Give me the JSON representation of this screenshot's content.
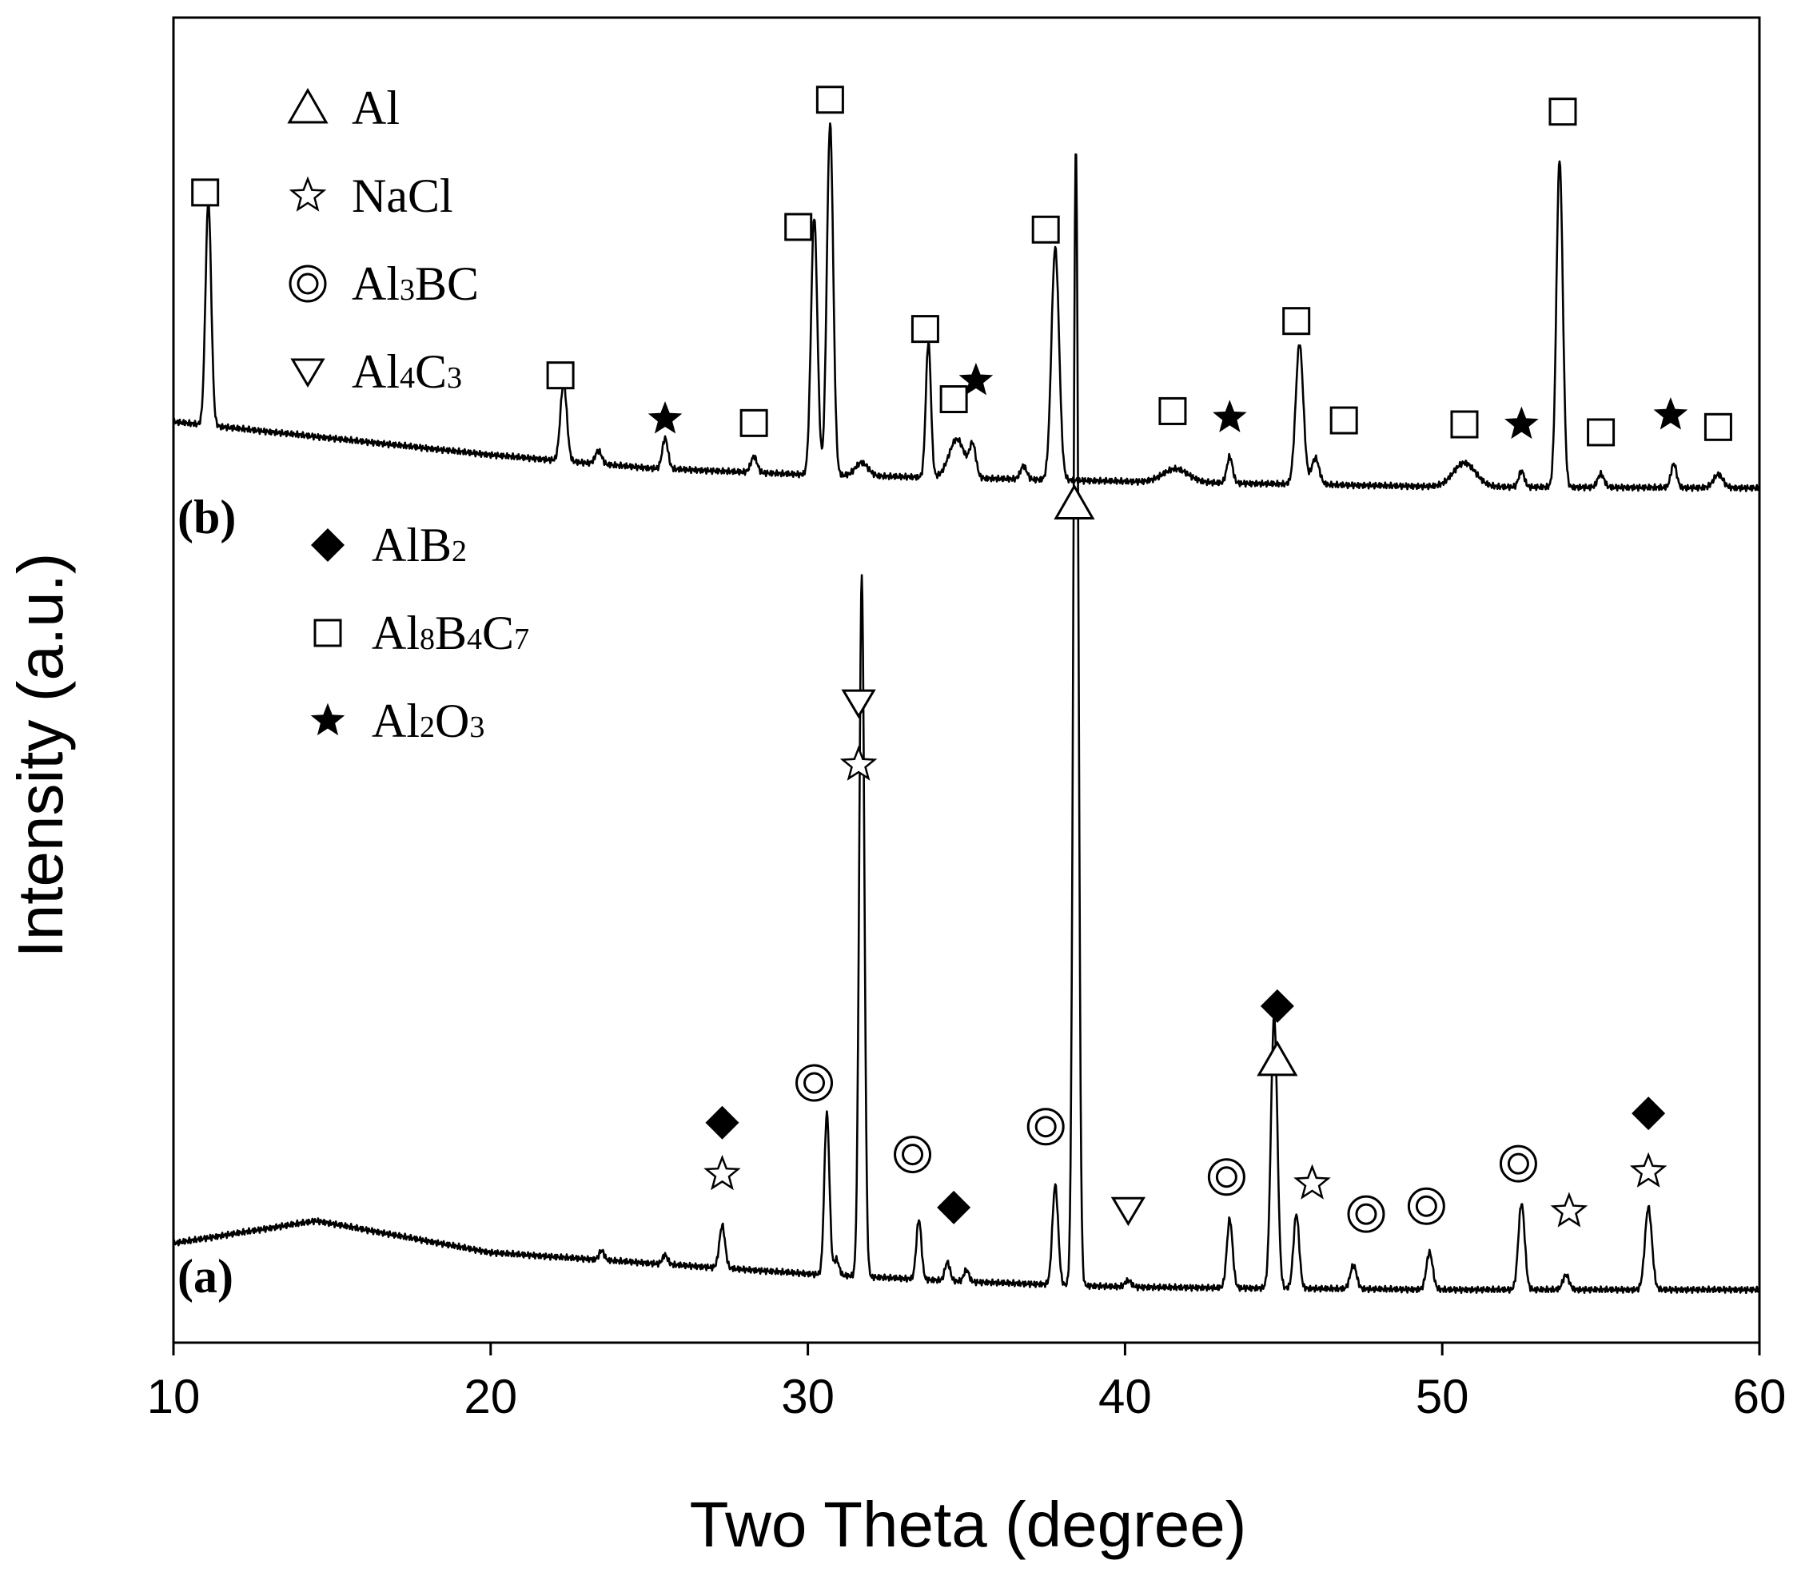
{
  "chart_data": {
    "type": "line",
    "xlabel": "Two Theta (degree)",
    "ylabel": "Intensity (a.u.)",
    "xlim": [
      10,
      60
    ],
    "ylim": [
      0,
      100
    ],
    "x_ticks": [
      "10",
      "20",
      "30",
      "40",
      "50",
      "60"
    ],
    "legend": [
      {
        "symbol": "triangle-up",
        "label": "Al"
      },
      {
        "symbol": "star-open",
        "label": "NaCl"
      },
      {
        "symbol": "double-circle",
        "label": "Al3BC"
      },
      {
        "symbol": "triangle-down",
        "label": "Al4C3"
      },
      {
        "symbol": "diamond",
        "label": "AlB2"
      },
      {
        "symbol": "square",
        "label": "Al8B4C7"
      },
      {
        "symbol": "star-filled",
        "label": "Al2O3"
      }
    ],
    "legend_display": [
      {
        "base": "Al",
        "parts": [
          {
            "t": "Al",
            "sub": false
          }
        ]
      },
      {
        "base": "NaCl",
        "parts": [
          {
            "t": "NaCl",
            "sub": false
          }
        ]
      },
      {
        "base": "Al3BC",
        "parts": [
          {
            "t": "Al",
            "sub": false
          },
          {
            "t": "3",
            "sub": true
          },
          {
            "t": "BC",
            "sub": false
          }
        ]
      },
      {
        "base": "Al4C3",
        "parts": [
          {
            "t": "Al",
            "sub": false
          },
          {
            "t": "4",
            "sub": true
          },
          {
            "t": "C",
            "sub": false
          },
          {
            "t": "3",
            "sub": true
          }
        ]
      },
      {
        "base": "AlB2",
        "parts": [
          {
            "t": "AlB",
            "sub": false
          },
          {
            "t": "2",
            "sub": true
          }
        ]
      },
      {
        "base": "Al8B4C7",
        "parts": [
          {
            "t": "Al",
            "sub": false
          },
          {
            "t": "8",
            "sub": true
          },
          {
            "t": "B",
            "sub": false
          },
          {
            "t": "4",
            "sub": true
          },
          {
            "t": "C",
            "sub": false
          },
          {
            "t": "7",
            "sub": true
          }
        ]
      },
      {
        "base": "Al2O3",
        "parts": [
          {
            "t": "Al",
            "sub": false
          },
          {
            "t": "2",
            "sub": true
          },
          {
            "t": "O",
            "sub": false
          },
          {
            "t": "3",
            "sub": true
          }
        ]
      }
    ],
    "series": [
      {
        "name": "(a)",
        "label": "(a)",
        "baseline": [
          [
            10,
            7.5
          ],
          [
            14.5,
            9.2
          ],
          [
            20,
            6.8
          ],
          [
            30,
            5.2
          ],
          [
            35,
            4.6
          ],
          [
            40,
            4.2
          ],
          [
            50,
            4.0
          ],
          [
            60,
            4.0
          ]
        ],
        "peaks": [
          {
            "x": 23.5,
            "h": 0.7,
            "w": 0.08
          },
          {
            "x": 25.5,
            "h": 0.7,
            "w": 0.08
          },
          {
            "x": 27.3,
            "h": 3.2,
            "w": 0.09
          },
          {
            "x": 30.6,
            "h": 12.2,
            "w": 0.08
          },
          {
            "x": 30.9,
            "h": 1.2,
            "w": 0.08
          },
          {
            "x": 31.7,
            "h": 53.0,
            "w": 0.08
          },
          {
            "x": 33.5,
            "h": 4.5,
            "w": 0.08
          },
          {
            "x": 34.4,
            "h": 1.4,
            "w": 0.08
          },
          {
            "x": 35.0,
            "h": 0.9,
            "w": 0.08
          },
          {
            "x": 37.8,
            "h": 7.5,
            "w": 0.09
          },
          {
            "x": 38.45,
            "h": 86.0,
            "w": 0.08
          },
          {
            "x": 40.1,
            "h": 0.5,
            "w": 0.1
          },
          {
            "x": 43.3,
            "h": 5.2,
            "w": 0.09
          },
          {
            "x": 44.7,
            "h": 20.5,
            "w": 0.1
          },
          {
            "x": 45.4,
            "h": 5.6,
            "w": 0.09
          },
          {
            "x": 47.2,
            "h": 1.8,
            "w": 0.1
          },
          {
            "x": 49.6,
            "h": 2.8,
            "w": 0.1
          },
          {
            "x": 52.5,
            "h": 6.5,
            "w": 0.1
          },
          {
            "x": 53.9,
            "h": 1.1,
            "w": 0.1
          },
          {
            "x": 56.5,
            "h": 6.2,
            "w": 0.11
          }
        ],
        "markers": [
          {
            "x": 27.3,
            "y": 12.7,
            "symbol": "star-open"
          },
          {
            "x": 27.3,
            "y": 16.6,
            "symbol": "diamond"
          },
          {
            "x": 30.2,
            "y": 19.6,
            "symbol": "double-circle"
          },
          {
            "x": 31.6,
            "y": 43.6,
            "symbol": "star-open"
          },
          {
            "x": 31.6,
            "y": 48.3,
            "symbol": "triangle-down"
          },
          {
            "x": 33.3,
            "y": 14.2,
            "symbol": "double-circle"
          },
          {
            "x": 34.6,
            "y": 10.2,
            "symbol": "diamond"
          },
          {
            "x": 37.5,
            "y": 16.3,
            "symbol": "double-circle"
          },
          {
            "x": 38.4,
            "y": 63.3,
            "symbol": "triangle-up"
          },
          {
            "x": 40.1,
            "y": 10.0,
            "symbol": "triangle-down"
          },
          {
            "x": 43.2,
            "y": 12.5,
            "symbol": "double-circle"
          },
          {
            "x": 44.8,
            "y": 21.3,
            "symbol": "triangle-up"
          },
          {
            "x": 44.8,
            "y": 25.4,
            "symbol": "diamond"
          },
          {
            "x": 45.9,
            "y": 12.0,
            "symbol": "star-open"
          },
          {
            "x": 47.6,
            "y": 9.7,
            "symbol": "double-circle"
          },
          {
            "x": 49.5,
            "y": 10.3,
            "symbol": "double-circle"
          },
          {
            "x": 52.4,
            "y": 13.5,
            "symbol": "double-circle"
          },
          {
            "x": 54.0,
            "y": 9.9,
            "symbol": "star-open"
          },
          {
            "x": 56.5,
            "y": 12.9,
            "symbol": "star-open"
          },
          {
            "x": 56.5,
            "y": 17.3,
            "symbol": "diamond"
          }
        ]
      },
      {
        "name": "(b)",
        "label": "(b)",
        "baseline": [
          [
            10,
            69.5
          ],
          [
            20,
            67.0
          ],
          [
            25,
            66.0
          ],
          [
            30,
            65.5
          ],
          [
            40,
            65.0
          ],
          [
            50,
            64.6
          ],
          [
            60,
            64.5
          ]
        ],
        "peaks": [
          {
            "x": 11.1,
            "h": 17.0,
            "w": 0.09
          },
          {
            "x": 22.3,
            "h": 6.0,
            "w": 0.1
          },
          {
            "x": 23.4,
            "h": 1.0,
            "w": 0.1
          },
          {
            "x": 25.5,
            "h": 2.3,
            "w": 0.09
          },
          {
            "x": 28.3,
            "h": 1.2,
            "w": 0.1
          },
          {
            "x": 30.2,
            "h": 19.5,
            "w": 0.1
          },
          {
            "x": 30.7,
            "h": 26.5,
            "w": 0.1
          },
          {
            "x": 31.7,
            "h": 1.0,
            "w": 0.2
          },
          {
            "x": 33.8,
            "h": 10.2,
            "w": 0.08
          },
          {
            "x": 34.7,
            "h": 2.9,
            "w": 0.25
          },
          {
            "x": 35.2,
            "h": 2.3,
            "w": 0.1
          },
          {
            "x": 36.8,
            "h": 1.0,
            "w": 0.1
          },
          {
            "x": 37.8,
            "h": 17.5,
            "w": 0.12
          },
          {
            "x": 41.6,
            "h": 1.0,
            "w": 0.4
          },
          {
            "x": 43.3,
            "h": 2.0,
            "w": 0.09
          },
          {
            "x": 45.5,
            "h": 10.6,
            "w": 0.12
          },
          {
            "x": 46.0,
            "h": 2.0,
            "w": 0.12
          },
          {
            "x": 50.7,
            "h": 1.8,
            "w": 0.35
          },
          {
            "x": 52.5,
            "h": 1.2,
            "w": 0.09
          },
          {
            "x": 53.7,
            "h": 24.7,
            "w": 0.1
          },
          {
            "x": 55.0,
            "h": 1.0,
            "w": 0.1
          },
          {
            "x": 57.3,
            "h": 1.8,
            "w": 0.09
          },
          {
            "x": 58.7,
            "h": 1.0,
            "w": 0.15
          }
        ],
        "markers": [
          {
            "x": 11.0,
            "y": 86.8,
            "symbol": "square"
          },
          {
            "x": 22.2,
            "y": 73.0,
            "symbol": "square"
          },
          {
            "x": 25.5,
            "y": 69.7,
            "symbol": "star-filled"
          },
          {
            "x": 28.3,
            "y": 69.4,
            "symbol": "square"
          },
          {
            "x": 29.7,
            "y": 84.2,
            "symbol": "square"
          },
          {
            "x": 30.7,
            "y": 93.8,
            "symbol": "square"
          },
          {
            "x": 33.7,
            "y": 76.5,
            "symbol": "square"
          },
          {
            "x": 34.6,
            "y": 71.2,
            "symbol": "square"
          },
          {
            "x": 35.3,
            "y": 72.6,
            "symbol": "star-filled"
          },
          {
            "x": 37.5,
            "y": 84.0,
            "symbol": "square"
          },
          {
            "x": 41.5,
            "y": 70.3,
            "symbol": "square"
          },
          {
            "x": 43.3,
            "y": 69.8,
            "symbol": "star-filled"
          },
          {
            "x": 45.4,
            "y": 77.1,
            "symbol": "square"
          },
          {
            "x": 46.9,
            "y": 69.6,
            "symbol": "square"
          },
          {
            "x": 50.7,
            "y": 69.3,
            "symbol": "square"
          },
          {
            "x": 52.5,
            "y": 69.3,
            "symbol": "star-filled"
          },
          {
            "x": 53.8,
            "y": 92.9,
            "symbol": "square"
          },
          {
            "x": 55.0,
            "y": 68.7,
            "symbol": "square"
          },
          {
            "x": 57.2,
            "y": 70.0,
            "symbol": "star-filled"
          },
          {
            "x": 58.7,
            "y": 69.1,
            "symbol": "square"
          }
        ]
      }
    ]
  }
}
